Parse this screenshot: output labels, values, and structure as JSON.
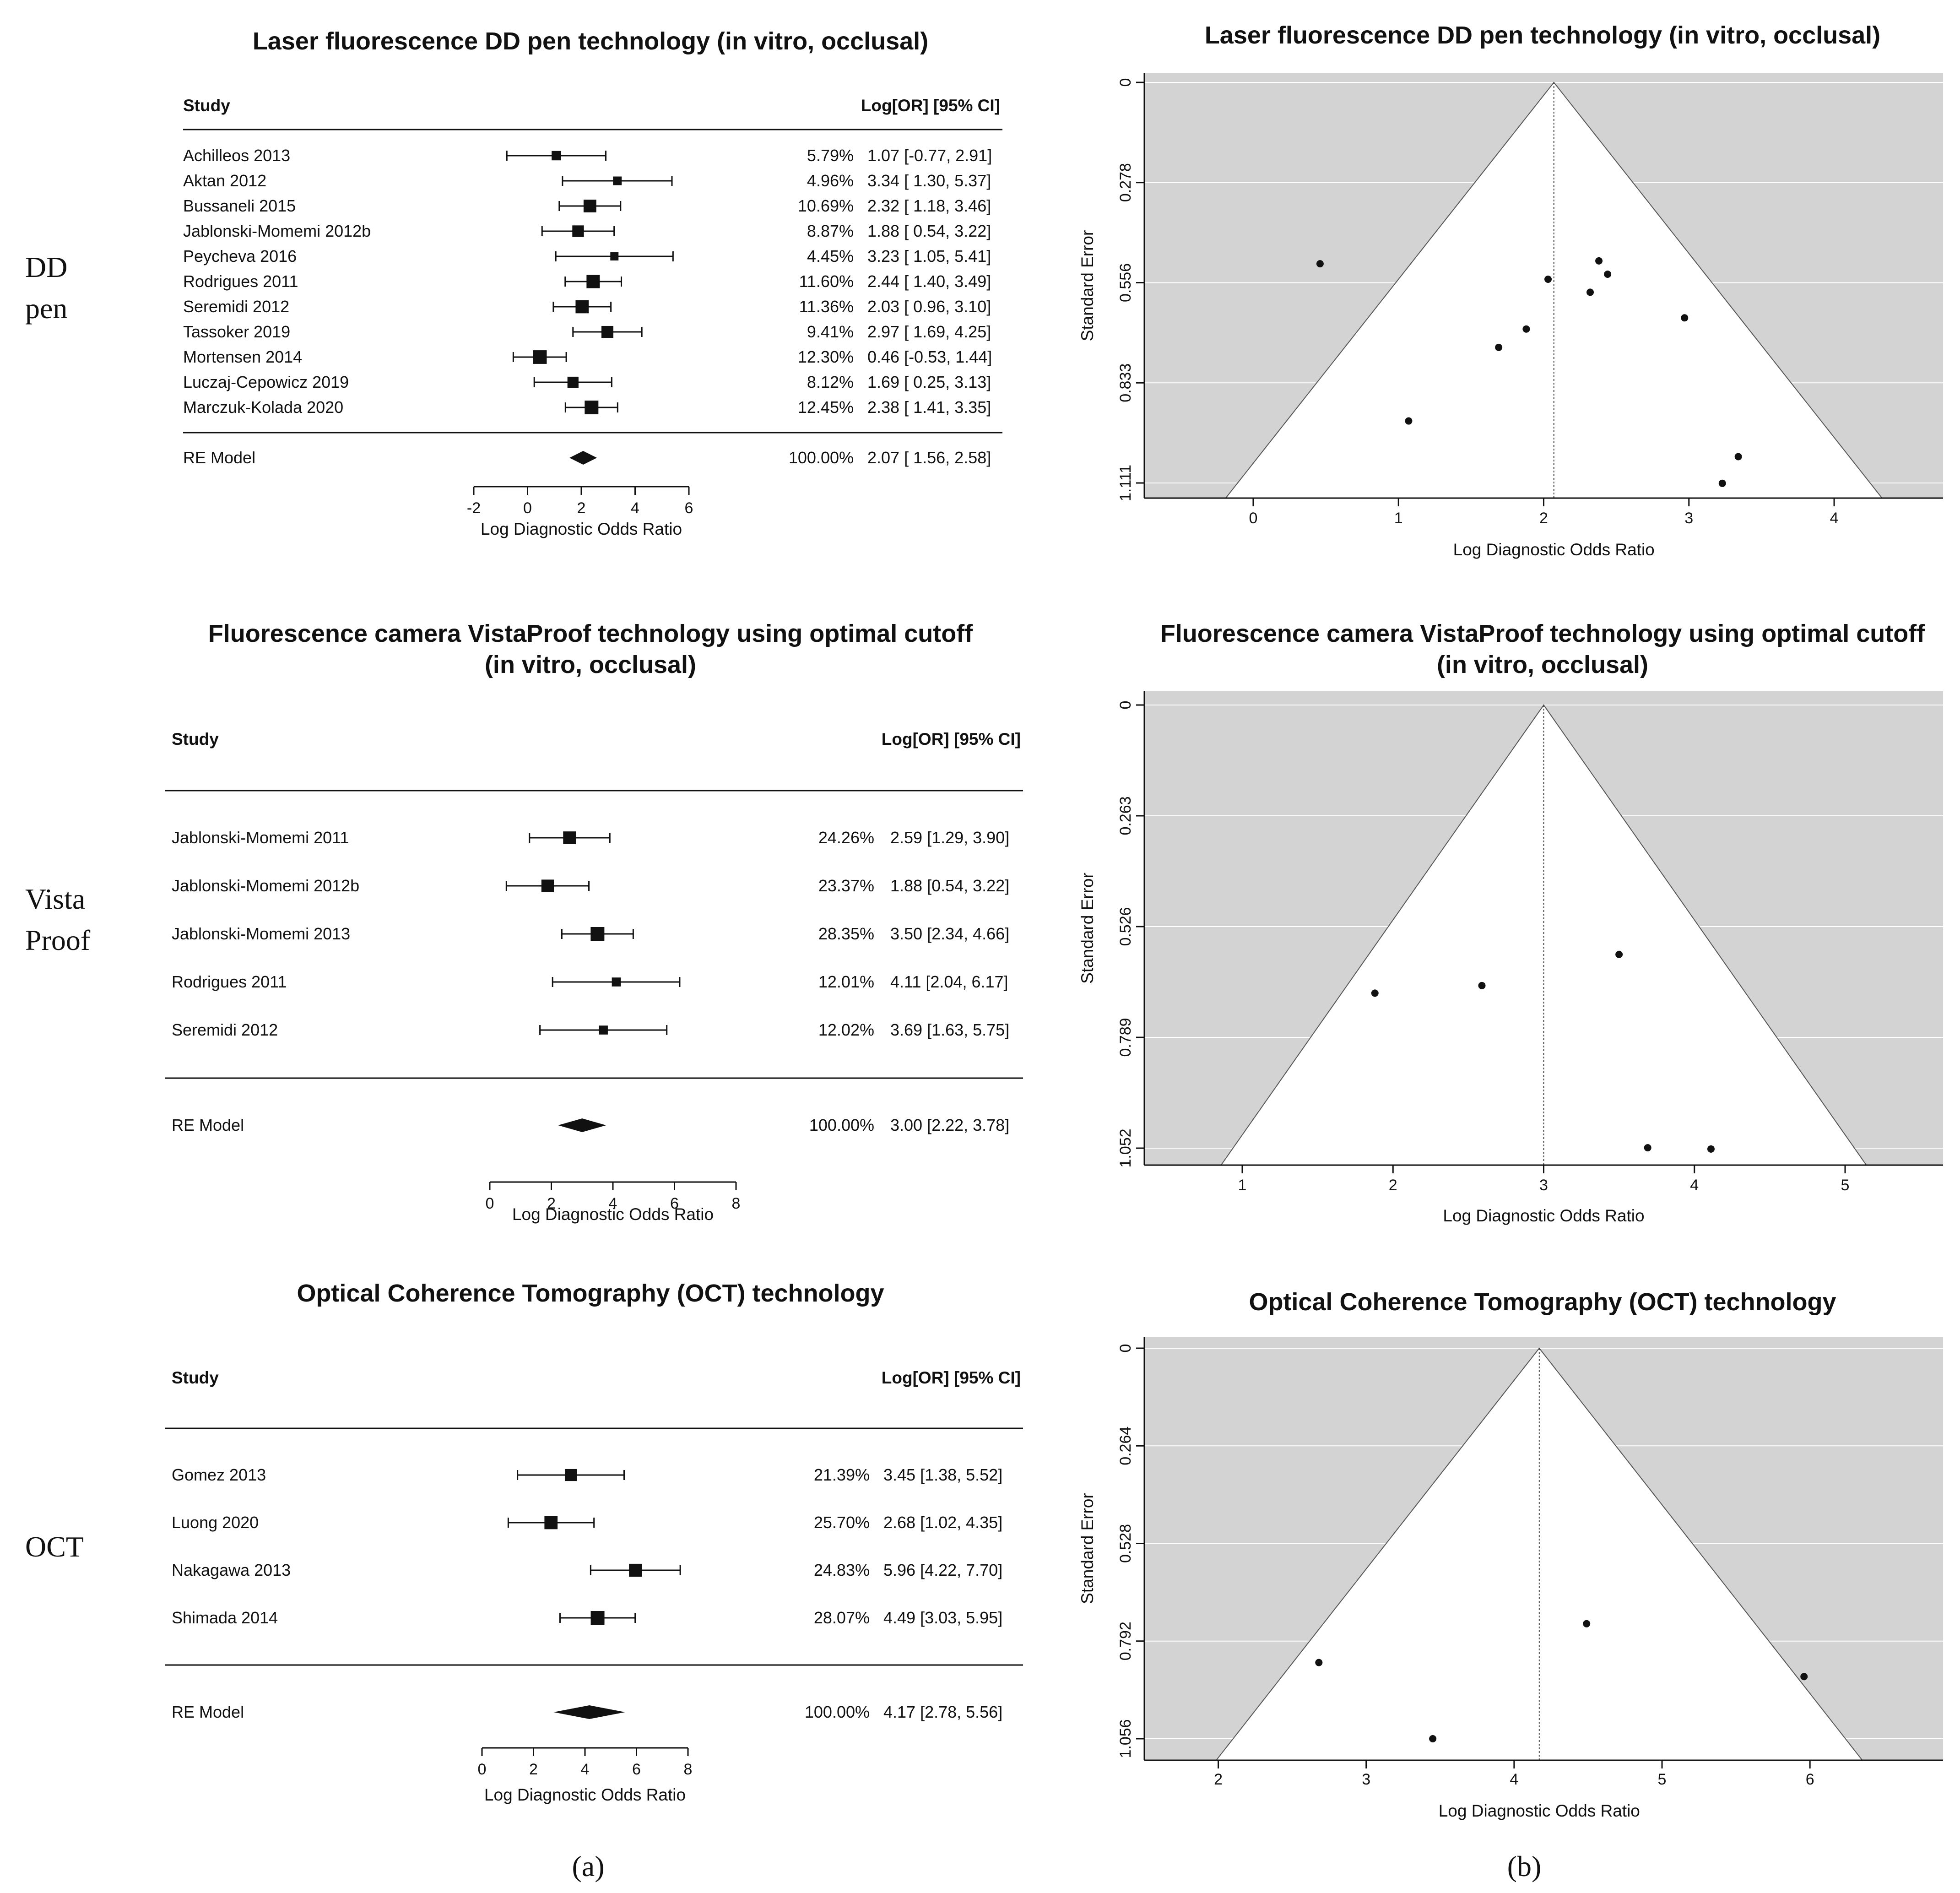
{
  "panel_labels": {
    "a": "(a)",
    "b": "(b)"
  },
  "group_labels": [
    [
      "DD",
      "pen"
    ],
    [
      "Vista",
      "Proof"
    ],
    [
      "OCT"
    ]
  ],
  "colors": {
    "funnel_bg": "#d3d3d3",
    "funnel_inner": "#ffffff",
    "grid": "#ffffff",
    "ink": "#111111"
  },
  "chart_data": [
    {
      "type": "forest",
      "title": [
        "Laser fluorescence DD pen technology (in vitro, occlusal)"
      ],
      "col_study": "Study",
      "col_effect": "Log[OR] [95% CI]",
      "xlabel": "Log Diagnostic Odds Ratio",
      "xticks": [
        "-2",
        "0",
        "2",
        "4",
        "6"
      ],
      "xlim": [
        -2,
        6
      ],
      "studies": [
        {
          "name": "Achilleos 2013",
          "weight": "5.79%",
          "est": 1.07,
          "lo": -0.77,
          "hi": 2.91,
          "ci": "1.07 [-0.77, 2.91]"
        },
        {
          "name": "Aktan 2012",
          "weight": "4.96%",
          "est": 3.34,
          "lo": 1.3,
          "hi": 5.37,
          "ci": "3.34 [ 1.30, 5.37]"
        },
        {
          "name": "Bussaneli 2015",
          "weight": "10.69%",
          "est": 2.32,
          "lo": 1.18,
          "hi": 3.46,
          "ci": "2.32 [ 1.18, 3.46]"
        },
        {
          "name": "Jablonski-Momemi 2012b",
          "weight": "8.87%",
          "est": 1.88,
          "lo": 0.54,
          "hi": 3.22,
          "ci": "1.88 [ 0.54, 3.22]"
        },
        {
          "name": "Peycheva 2016",
          "weight": "4.45%",
          "est": 3.23,
          "lo": 1.05,
          "hi": 5.41,
          "ci": "3.23 [ 1.05, 5.41]"
        },
        {
          "name": "Rodrigues 2011",
          "weight": "11.60%",
          "est": 2.44,
          "lo": 1.4,
          "hi": 3.49,
          "ci": "2.44 [ 1.40, 3.49]"
        },
        {
          "name": "Seremidi 2012",
          "weight": "11.36%",
          "est": 2.03,
          "lo": 0.96,
          "hi": 3.1,
          "ci": "2.03 [ 0.96, 3.10]"
        },
        {
          "name": "Tassoker 2019",
          "weight": "9.41%",
          "est": 2.97,
          "lo": 1.69,
          "hi": 4.25,
          "ci": "2.97 [ 1.69, 4.25]"
        },
        {
          "name": "Mortensen 2014",
          "weight": "12.30%",
          "est": 0.46,
          "lo": -0.53,
          "hi": 1.44,
          "ci": "0.46 [-0.53, 1.44]"
        },
        {
          "name": "Luczaj-Cepowicz 2019",
          "weight": "8.12%",
          "est": 1.69,
          "lo": 0.25,
          "hi": 3.13,
          "ci": "1.69 [ 0.25, 3.13]"
        },
        {
          "name": "Marczuk-Kolada 2020",
          "weight": "12.45%",
          "est": 2.38,
          "lo": 1.41,
          "hi": 3.35,
          "ci": "2.38 [ 1.41, 3.35]"
        }
      ],
      "summary": {
        "name": "RE Model",
        "weight": "100.00%",
        "est": 2.07,
        "lo": 1.56,
        "hi": 2.58,
        "ci": "2.07 [ 1.56, 2.58]"
      }
    },
    {
      "type": "forest",
      "title": [
        "Fluorescence camera VistaProof technology using optimal cutoff",
        "(in vitro, occlusal)"
      ],
      "col_study": "Study",
      "col_effect": "Log[OR] [95% CI]",
      "xlabel": "Log Diagnostic Odds Ratio",
      "xticks": [
        "0",
        "2",
        "4",
        "6",
        "8"
      ],
      "xlim": [
        0,
        8
      ],
      "studies": [
        {
          "name": "Jablonski-Momemi 2011",
          "weight": "24.26%",
          "est": 2.59,
          "lo": 1.29,
          "hi": 3.9,
          "ci": "2.59 [1.29, 3.90]"
        },
        {
          "name": "Jablonski-Momemi 2012b",
          "weight": "23.37%",
          "est": 1.88,
          "lo": 0.54,
          "hi": 3.22,
          "ci": "1.88 [0.54, 3.22]"
        },
        {
          "name": "Jablonski-Momemi 2013",
          "weight": "28.35%",
          "est": 3.5,
          "lo": 2.34,
          "hi": 4.66,
          "ci": "3.50 [2.34, 4.66]"
        },
        {
          "name": "Rodrigues 2011",
          "weight": "12.01%",
          "est": 4.11,
          "lo": 2.04,
          "hi": 6.17,
          "ci": "4.11 [2.04, 6.17]"
        },
        {
          "name": "Seremidi 2012",
          "weight": "12.02%",
          "est": 3.69,
          "lo": 1.63,
          "hi": 5.75,
          "ci": "3.69 [1.63, 5.75]"
        }
      ],
      "summary": {
        "name": "RE Model",
        "weight": "100.00%",
        "est": 3.0,
        "lo": 2.22,
        "hi": 3.78,
        "ci": "3.00 [2.22, 3.78]"
      }
    },
    {
      "type": "forest",
      "title": [
        "Optical Coherence Tomography (OCT) technology"
      ],
      "col_study": "Study",
      "col_effect": "Log[OR] [95% CI]",
      "xlabel": "Log Diagnostic Odds Ratio",
      "xticks": [
        "0",
        "2",
        "4",
        "6",
        "8"
      ],
      "xlim": [
        0,
        8
      ],
      "studies": [
        {
          "name": "Gomez 2013",
          "weight": "21.39%",
          "est": 3.45,
          "lo": 1.38,
          "hi": 5.52,
          "ci": "3.45 [1.38, 5.52]"
        },
        {
          "name": "Luong 2020",
          "weight": "25.70%",
          "est": 2.68,
          "lo": 1.02,
          "hi": 4.35,
          "ci": "2.68 [1.02, 4.35]"
        },
        {
          "name": "Nakagawa 2013",
          "weight": "24.83%",
          "est": 5.96,
          "lo": 4.22,
          "hi": 7.7,
          "ci": "5.96 [4.22, 7.70]"
        },
        {
          "name": "Shimada 2014",
          "weight": "28.07%",
          "est": 4.49,
          "lo": 3.03,
          "hi": 5.95,
          "ci": "4.49 [3.03, 5.95]"
        }
      ],
      "summary": {
        "name": "RE Model",
        "weight": "100.00%",
        "est": 4.17,
        "lo": 2.78,
        "hi": 5.56,
        "ci": "4.17 [2.78, 5.56]"
      }
    },
    {
      "type": "funnel",
      "title": [
        "Laser fluorescence DD pen technology (in vitro, occlusal)"
      ],
      "xlabel": "Log Diagnostic Odds Ratio",
      "ylabel": "Standard Error",
      "xlim": [
        -0.75,
        4.75
      ],
      "xticks": [
        0,
        1,
        2,
        3,
        4
      ],
      "yticks": [
        "0",
        "0.278",
        "0.556",
        "0.833",
        "1.111"
      ],
      "ymax": 1.111,
      "center": 2.07,
      "points": [
        {
          "x": 1.07,
          "se": 0.939
        },
        {
          "x": 3.34,
          "se": 1.038
        },
        {
          "x": 2.32,
          "se": 0.582
        },
        {
          "x": 1.88,
          "se": 0.684
        },
        {
          "x": 3.23,
          "se": 1.112
        },
        {
          "x": 2.44,
          "se": 0.532
        },
        {
          "x": 2.03,
          "se": 0.546
        },
        {
          "x": 2.97,
          "se": 0.653
        },
        {
          "x": 0.46,
          "se": 0.503
        },
        {
          "x": 1.69,
          "se": 0.735
        },
        {
          "x": 2.38,
          "se": 0.495
        }
      ]
    },
    {
      "type": "funnel",
      "title": [
        "Fluorescence camera VistaProof technology using optimal cutoff",
        "(in vitro, occlusal)"
      ],
      "xlabel": "Log Diagnostic Odds Ratio",
      "ylabel": "Standard Error",
      "xlim": [
        0.35,
        5.65
      ],
      "xticks": [
        1,
        2,
        3,
        4,
        5
      ],
      "yticks": [
        "0",
        "0.263",
        "0.526",
        "0.789",
        "1.052"
      ],
      "ymax": 1.052,
      "center": 3.0,
      "points": [
        {
          "x": 2.59,
          "se": 0.666
        },
        {
          "x": 1.88,
          "se": 0.684
        },
        {
          "x": 3.5,
          "se": 0.592
        },
        {
          "x": 4.11,
          "se": 1.054
        },
        {
          "x": 3.69,
          "se": 1.051
        }
      ]
    },
    {
      "type": "funnel",
      "title": [
        "Optical Coherence Tomography (OCT) technology"
      ],
      "xlabel": "Log Diagnostic Odds Ratio",
      "ylabel": "Standard Error",
      "xlim": [
        1.5,
        6.9
      ],
      "xticks": [
        2,
        3,
        4,
        5,
        6
      ],
      "yticks": [
        "0",
        "0.264",
        "0.528",
        "0.792",
        "1.056"
      ],
      "ymax": 1.056,
      "center": 4.17,
      "points": [
        {
          "x": 3.45,
          "se": 1.056
        },
        {
          "x": 2.68,
          "se": 0.85
        },
        {
          "x": 5.96,
          "se": 0.888
        },
        {
          "x": 4.49,
          "se": 0.745
        }
      ]
    }
  ]
}
